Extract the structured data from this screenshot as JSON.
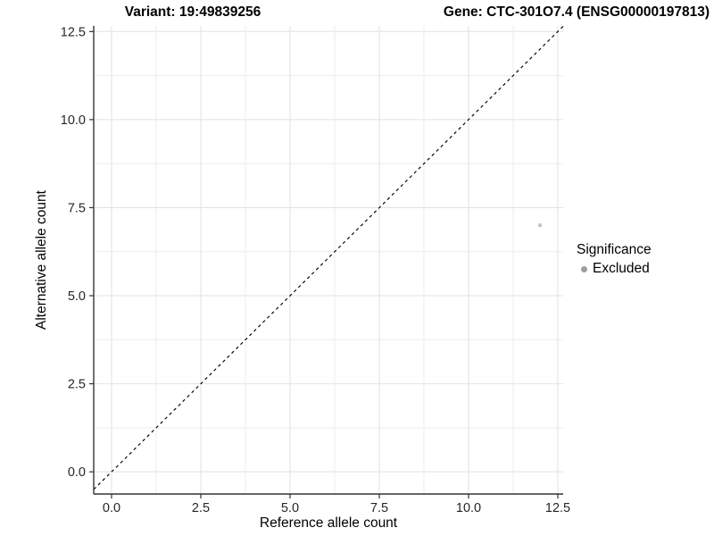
{
  "chart_data": {
    "type": "scatter",
    "title_left": "Variant: 19:49839256",
    "title_right": "Gene: CTC-301O7.4 (ENSG00000197813)",
    "xlabel": "Reference allele count",
    "ylabel": "Alternative allele count",
    "xlim": [
      -0.5,
      12.65
    ],
    "ylim": [
      -0.63,
      12.66
    ],
    "tick_values": [
      0,
      2.5,
      5,
      7.5,
      10,
      12.5
    ],
    "tick_labels": [
      "0.0",
      "2.5",
      "5.0",
      "7.5",
      "10.0",
      "12.5"
    ],
    "minor_breaks": [
      1.25,
      3.75,
      6.25,
      8.75,
      11.25
    ],
    "grid": "on",
    "points": [
      {
        "x": 12,
        "y": 7,
        "significance": "Excluded"
      }
    ],
    "identity_line": {
      "slope": 1,
      "intercept": 0,
      "style": "dashed",
      "color": "#000000"
    },
    "legend": {
      "position": "right",
      "title": "Significance",
      "items": [
        {
          "label": "Excluded",
          "color": "#9e9e9e"
        }
      ]
    },
    "colors": {
      "point": "#c5c5c5",
      "axis": "#333333",
      "tick_text": "#262626",
      "grid_major": "#e2e2e2",
      "grid_minor": "#ededed",
      "background": "#ffffff"
    }
  }
}
